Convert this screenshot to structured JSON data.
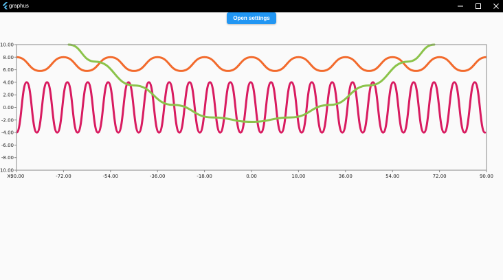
{
  "window": {
    "title": "graphus",
    "controls": [
      "minimize-icon",
      "maximize-icon",
      "close-icon"
    ]
  },
  "toolbar": {
    "settings_label": "Open settings"
  },
  "colors": {
    "background": "#fafafa",
    "titlebar": "#000000",
    "button": "#2196f3",
    "axis": "#888888"
  },
  "chart_data": {
    "type": "line",
    "xlim": [
      -90,
      90
    ],
    "ylim": [
      -10,
      10
    ],
    "x_axis_label": "X:",
    "xticks": [
      -90,
      -72,
      -54,
      -36,
      -18,
      0,
      18,
      36,
      54,
      72,
      90
    ],
    "xtick_labels": [
      "-90.00",
      "-72.00",
      "-54.00",
      "-36.00",
      "-18.00",
      "0.00",
      "18.00",
      "36.00",
      "54.00",
      "72.00",
      "90.00"
    ],
    "yticks": [
      -10,
      -8,
      -6,
      -4,
      -2,
      0,
      2,
      4,
      6,
      8,
      10
    ],
    "ytick_labels": [
      "-10.00",
      "-8.00",
      "-6.00",
      "-4.00",
      "-2.00",
      "0.00",
      "2.00",
      "4.00",
      "6.00",
      "8.00",
      "10.00"
    ],
    "grid": false,
    "series": [
      {
        "color": "#f26a2c",
        "x": [
          -90,
          -81,
          -72,
          -63,
          -54,
          -45,
          -36,
          -27,
          -18,
          -9,
          0,
          9,
          18,
          27,
          36,
          45,
          54,
          63,
          72,
          81,
          90
        ],
        "y": [
          8,
          5.8,
          8,
          5.8,
          8,
          5.8,
          8,
          5.8,
          8,
          5.8,
          8,
          5.8,
          8,
          5.8,
          8,
          5.8,
          8,
          5.8,
          8,
          5.8,
          8
        ]
      },
      {
        "color": "#d81b60",
        "x": [
          -90,
          -86.1,
          -82.2,
          -78.3,
          -74.4,
          -70.5,
          -66.6,
          -62.7,
          -58.8,
          -54.9,
          -51,
          -47.1,
          -43.2,
          -39.3,
          -35.4,
          -31.5,
          -27.6,
          -23.7,
          -19.8,
          -15.9,
          -12,
          -8.1,
          -4.2,
          -0.3,
          3.6,
          7.5,
          11.4,
          15.3,
          19.2,
          23.1,
          27,
          30.9,
          34.8,
          38.7,
          42.6,
          46.5,
          50.4,
          54.3,
          58.2,
          62.1,
          66,
          69.9,
          73.8,
          77.7,
          81.6,
          85.5,
          89.4
        ],
        "y": [
          -4,
          4,
          -4,
          4,
          -4,
          4,
          -4,
          4,
          -4,
          4,
          -4,
          4,
          -4,
          4,
          -4,
          4,
          -4,
          4,
          -4,
          4,
          -4,
          4,
          -4,
          4,
          -4,
          4,
          -4,
          4,
          -4,
          4,
          -4,
          4,
          -4,
          4,
          -4,
          4,
          -4,
          4,
          -4,
          4,
          -4,
          4,
          -4,
          4,
          -4,
          4,
          -4
        ]
      },
      {
        "color": "#8bc34a",
        "x": [
          -70,
          -60,
          -45,
          -30,
          -15,
          0,
          15,
          30,
          45,
          60,
          70
        ],
        "y": [
          10,
          7.3,
          3.5,
          0.4,
          -1.6,
          -2.3,
          -1.6,
          0.4,
          3.5,
          7.3,
          10
        ]
      }
    ]
  }
}
